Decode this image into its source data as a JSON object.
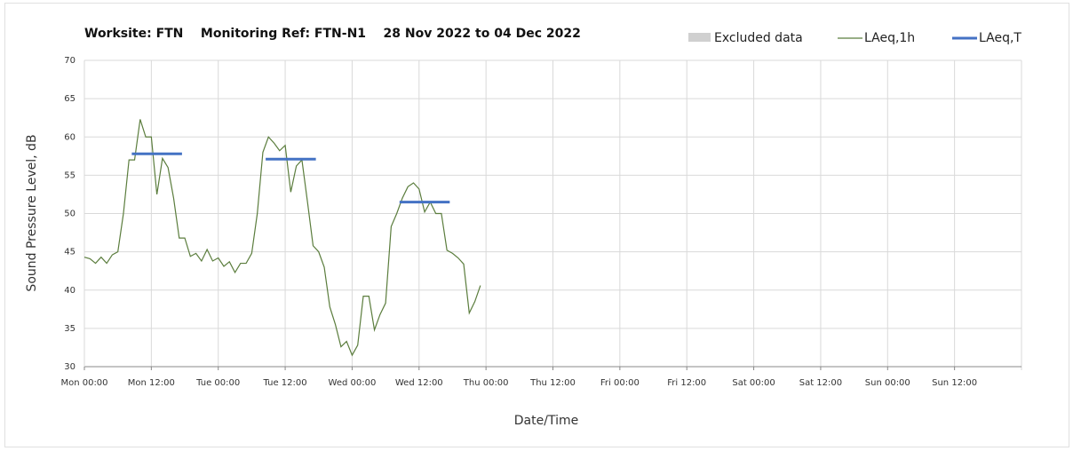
{
  "chart_data": {
    "type": "line",
    "title": "Worksite: FTN    Monitoring Ref: FTN-N1    28 Nov 2022 to 04 Dec 2022",
    "x_label": "Date/Time",
    "y_label": "Sound Pressure Level, dB",
    "excluded_data": {
      "name": "Excluded data",
      "color": "#d0d0d0"
    },
    "series": [
      {
        "name": "LAeq,1h",
        "color": "#5b7d3d",
        "x": [
          0,
          1,
          2,
          3,
          4,
          5,
          6,
          7,
          8,
          9,
          10,
          11,
          12,
          13,
          14,
          15,
          16,
          17,
          18,
          19,
          20,
          21,
          22,
          23,
          24,
          25,
          26,
          27,
          28,
          29,
          30,
          31,
          32,
          33,
          34,
          35,
          36,
          37,
          38,
          39,
          40,
          41,
          42,
          43,
          44,
          45,
          46,
          47,
          48,
          49,
          50,
          51,
          52,
          53,
          54,
          55,
          56,
          57,
          58,
          59,
          60,
          61,
          62,
          63,
          64,
          65,
          66,
          67,
          68,
          69,
          70,
          71
        ],
        "values": [
          44.3,
          44.1,
          43.5,
          44.3,
          43.5,
          44.6,
          45.0,
          50,
          57,
          57,
          62.3,
          60,
          60,
          52.5,
          57.2,
          56,
          52,
          46.8,
          46.8,
          44.4,
          44.8,
          43.8,
          45.3,
          43.8,
          44.2,
          43.1,
          43.7,
          42.3,
          43.5,
          43.5,
          44.8,
          50,
          58,
          60,
          59.2,
          58.2,
          58.9,
          52.8,
          56.2,
          57,
          51.5,
          45.8,
          45,
          43,
          37.8,
          35.5,
          32.6,
          33.3,
          31.5,
          32.8,
          39.2,
          39.2,
          34.8,
          36.8,
          38.3,
          48.3,
          50,
          52,
          53.5,
          54,
          53.2,
          50.2,
          51.5,
          50,
          50,
          45.2,
          44.8,
          44.2,
          43.4,
          37,
          38.5,
          40.6
        ]
      },
      {
        "name": "LAeq,T",
        "color": "#4472c4",
        "x": [
          8.5,
          17.5,
          25,
          32.5,
          41.5,
          49,
          56.5,
          65.5
        ],
        "values": [
          57.8,
          57.8,
          null,
          57.1,
          57.1,
          null,
          51.5,
          51.5
        ]
      }
    ],
    "xlim": [
      0,
      168
    ],
    "xticks": [
      {
        "value": 0,
        "label": "Mon 00:00"
      },
      {
        "value": 12,
        "label": "Mon 12:00"
      },
      {
        "value": 24,
        "label": "Tue 00:00"
      },
      {
        "value": 36,
        "label": "Tue 12:00"
      },
      {
        "value": 48,
        "label": "Wed 00:00"
      },
      {
        "value": 60,
        "label": "Wed 12:00"
      },
      {
        "value": 72,
        "label": "Thu 00:00"
      },
      {
        "value": 84,
        "label": "Thu 12:00"
      },
      {
        "value": 96,
        "label": "Fri 00:00"
      },
      {
        "value": 108,
        "label": "Fri 12:00"
      },
      {
        "value": 120,
        "label": "Sat 00:00"
      },
      {
        "value": 132,
        "label": "Sat 12:00"
      },
      {
        "value": 144,
        "label": "Sun 00:00"
      },
      {
        "value": 156,
        "label": "Sun 12:00"
      }
    ],
    "ylim": [
      30,
      70
    ],
    "yticks": [
      30,
      35,
      40,
      45,
      50,
      55,
      60,
      65,
      70
    ],
    "grid": true
  }
}
